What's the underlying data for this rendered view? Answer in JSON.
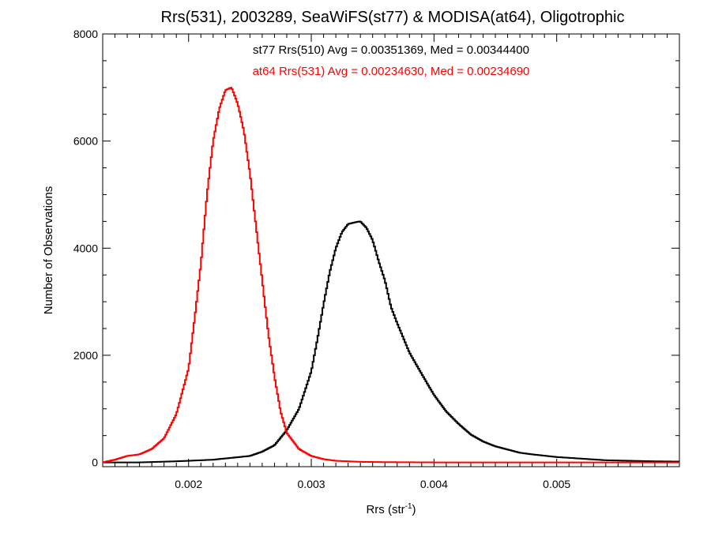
{
  "chart_data": {
    "type": "line",
    "title": "Rrs(531), 2003289, SeaWiFS(st77) & MODISA(at64), Oligotrophic",
    "xlabel_main": "Rrs (str",
    "xlabel_sup": "-1",
    "xlabel_close": ")",
    "ylabel": "Number of Observations",
    "xlim": [
      0.0013,
      0.006
    ],
    "ylim": [
      -80,
      8000
    ],
    "x_ticks": [
      0.002,
      0.003,
      0.004,
      0.005
    ],
    "x_tick_labels": [
      "0.002",
      "0.003",
      "0.004",
      "0.005"
    ],
    "y_ticks": [
      0,
      2000,
      4000,
      6000,
      8000
    ],
    "y_tick_labels": [
      "0",
      "2000",
      "4000",
      "6000",
      "8000"
    ],
    "grid": false,
    "step": true,
    "series": [
      {
        "annotation": "st77 Rrs(510) Avg = 0.00351369, Med = 0.00344400",
        "color": "#000000",
        "x": [
          0.0013,
          0.0016,
          0.0019,
          0.0022,
          0.0025,
          0.0026,
          0.0027,
          0.0028,
          0.0029,
          0.003,
          0.00305,
          0.0031,
          0.00315,
          0.0032,
          0.00325,
          0.0033,
          0.00335,
          0.0034,
          0.00345,
          0.0035,
          0.00355,
          0.0036,
          0.00365,
          0.0037,
          0.0038,
          0.0039,
          0.004,
          0.0041,
          0.0042,
          0.0043,
          0.0044,
          0.0045,
          0.0046,
          0.0047,
          0.0048,
          0.005,
          0.0052,
          0.0054,
          0.0056,
          0.0058,
          0.006
        ],
        "y": [
          0,
          0,
          20,
          50,
          120,
          200,
          320,
          600,
          1000,
          1700,
          2300,
          2950,
          3550,
          4000,
          4300,
          4450,
          4480,
          4500,
          4380,
          4150,
          3750,
          3400,
          2900,
          2600,
          2050,
          1650,
          1260,
          950,
          720,
          520,
          390,
          300,
          240,
          180,
          150,
          100,
          70,
          40,
          30,
          20,
          15
        ]
      },
      {
        "annotation": "at64 Rrs(531) Avg = 0.00234630, Med = 0.00234690",
        "color": "#ff0000",
        "x": [
          0.0013,
          0.0014,
          0.0015,
          0.0016,
          0.0017,
          0.0018,
          0.0019,
          0.002,
          0.00205,
          0.0021,
          0.00215,
          0.0022,
          0.00225,
          0.0023,
          0.00235,
          0.0024,
          0.00245,
          0.0025,
          0.00255,
          0.0026,
          0.00265,
          0.0027,
          0.00275,
          0.0028,
          0.0029,
          0.003,
          0.0031,
          0.0032,
          0.0034,
          0.0036,
          0.004,
          0.005,
          0.006
        ],
        "y": [
          0,
          50,
          120,
          150,
          250,
          450,
          900,
          1750,
          2700,
          3700,
          5000,
          6000,
          6600,
          6950,
          7000,
          6700,
          6200,
          5400,
          4400,
          3400,
          2400,
          1600,
          950,
          550,
          250,
          120,
          60,
          30,
          10,
          5,
          0,
          0,
          0
        ]
      }
    ]
  }
}
